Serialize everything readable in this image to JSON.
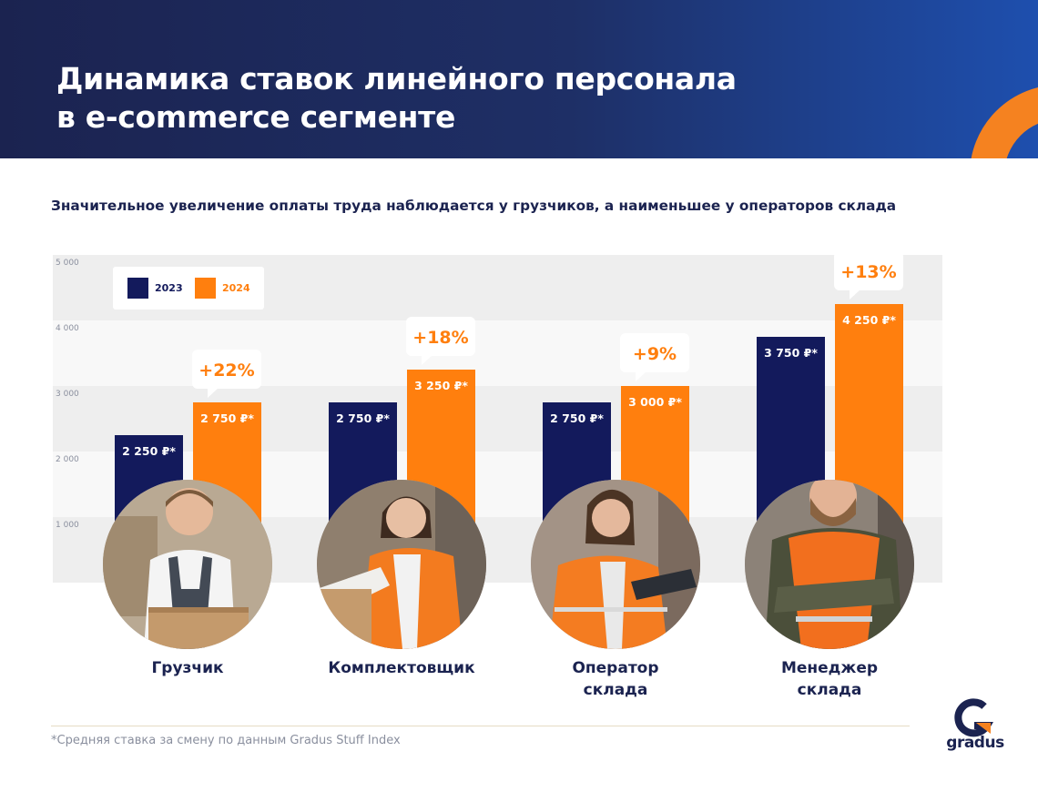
{
  "header": {
    "title_line1": "Динамика ставок линейного персонала",
    "title_line2": "в e-commerce сегменте"
  },
  "subtitle": "Значительное увеличение оплаты труда наблюдается у грузчиков, а наименьшее у операторов склада",
  "colors": {
    "navy": "#131a5c",
    "orange": "#ff7f0e",
    "brand_orange": "#f58220",
    "text_navy": "#1b2350"
  },
  "legend": {
    "s2023": "2023",
    "s2024": "2024"
  },
  "icons": [
    "photo-gruzchik-icon",
    "photo-komplektovshchik-icon",
    "photo-operator-icon",
    "photo-menedzher-icon",
    "gradus-logo-icon"
  ],
  "chart_data": {
    "type": "bar",
    "title": "Значительное увеличение оплаты труда наблюдается у грузчиков, а наименьшее у операторов склада",
    "categories": [
      "Грузчик",
      "Комплектовщик",
      "Оператор склада",
      "Менеджер склада"
    ],
    "series": [
      {
        "name": "2023",
        "values": [
          2250,
          2750,
          2750,
          3750
        ],
        "labels": [
          "2 250 ₽*",
          "2 750 ₽*",
          "2 750 ₽*",
          "3 750 ₽*"
        ]
      },
      {
        "name": "2024",
        "values": [
          2750,
          3250,
          3000,
          4250
        ],
        "labels": [
          "2 750 ₽*",
          "3 250 ₽*",
          "3 000 ₽*",
          "4 250 ₽*"
        ]
      }
    ],
    "change_labels": [
      "+22%",
      "+18%",
      "+9%",
      "+13%"
    ],
    "yticks": [
      1000,
      2000,
      3000,
      4000,
      5000
    ],
    "ytick_labels": [
      "1 000",
      "2 000",
      "3 000",
      "4 000",
      "5 000"
    ],
    "ylim": [
      0,
      5000
    ],
    "grid": "alternating bands",
    "legend_position": "top-left",
    "xlabel": "",
    "ylabel": ""
  },
  "roles": [
    {
      "line1": "Грузчик",
      "line2": ""
    },
    {
      "line1": "Комплектовщик",
      "line2": ""
    },
    {
      "line1": "Оператор",
      "line2": "склада"
    },
    {
      "line1": "Менеджер",
      "line2": "склада"
    }
  ],
  "footnote": "*Средняя ставка за смену по данным Gradus Stuff Index",
  "logo": {
    "word": "gradus"
  }
}
